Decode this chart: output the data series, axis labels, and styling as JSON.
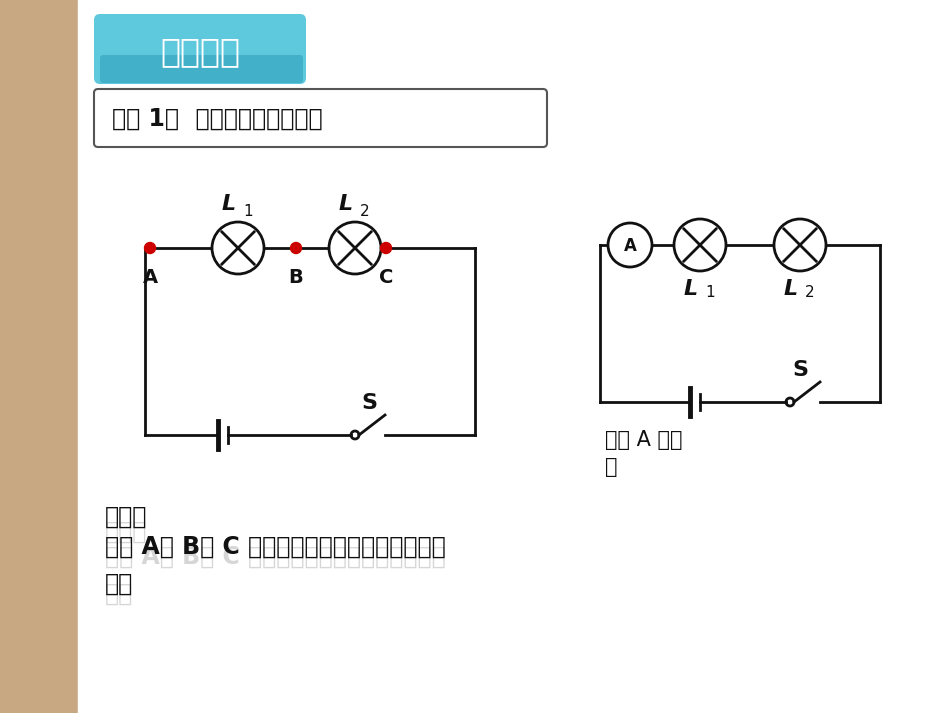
{
  "bg_color": "#f0ebe0",
  "left_strip_color": "#c8a882",
  "main_bg": "#ffffff",
  "title_box_color_top": "#5ec8dc",
  "title_box_color_bot": "#2899b8",
  "title_text": "实验探究",
  "subtitle_text": "探究 1：  串联电路的电流规律",
  "subtitle_border": "#555555",
  "guess_text1": "猜想：",
  "guess_text2": "流过 A、 B、 C 各点的电流大小可能存在什么关",
  "guess_text3": "系？",
  "annotation_text1": "测量 A 点电",
  "annotation_text2": "流",
  "circuit_line_color": "#111111",
  "dot_color": "#cc0000",
  "label_color": "#111111",
  "text_color": "#111111",
  "watermark_color": "#bbbbbb"
}
